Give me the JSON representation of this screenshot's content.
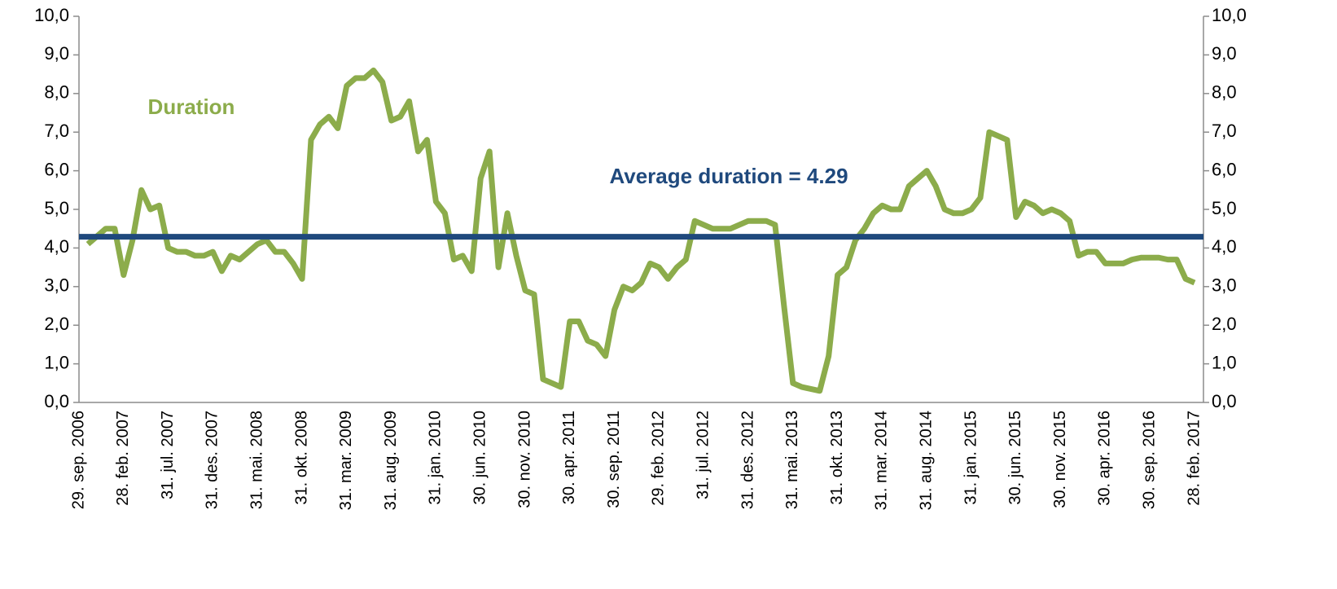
{
  "chart_data": {
    "type": "line",
    "categories": [
      "29. sep. 2006",
      null,
      null,
      null,
      null,
      "28. feb. 2007",
      null,
      null,
      null,
      null,
      "31. jul. 2007",
      null,
      null,
      null,
      null,
      "31. des. 2007",
      null,
      null,
      null,
      null,
      "31. mai. 2008",
      null,
      null,
      null,
      null,
      "31. okt. 2008",
      null,
      null,
      null,
      null,
      "31. mar. 2009",
      null,
      null,
      null,
      null,
      "31. aug. 2009",
      null,
      null,
      null,
      null,
      "31. jan. 2010",
      null,
      null,
      null,
      null,
      "30. jun. 2010",
      null,
      null,
      null,
      null,
      "30. nov. 2010",
      null,
      null,
      null,
      null,
      "30. apr. 2011",
      null,
      null,
      null,
      null,
      "30. sep. 2011",
      null,
      null,
      null,
      null,
      "29. feb. 2012",
      null,
      null,
      null,
      null,
      "31. jul. 2012",
      null,
      null,
      null,
      null,
      "31. des. 2012",
      null,
      null,
      null,
      null,
      "31. mai. 2013",
      null,
      null,
      null,
      null,
      "31. okt. 2013",
      null,
      null,
      null,
      null,
      "31. mar. 2014",
      null,
      null,
      null,
      null,
      "31. aug. 2014",
      null,
      null,
      null,
      null,
      "31. jan. 2015",
      null,
      null,
      null,
      null,
      "30. jun. 2015",
      null,
      null,
      null,
      null,
      "30. nov. 2015",
      null,
      null,
      null,
      null,
      "30. apr. 2016",
      null,
      null,
      null,
      null,
      "30. sep. 2016",
      null,
      null,
      null,
      null,
      "28. feb. 2017",
      null
    ],
    "series": [
      {
        "name": "Duration",
        "color": "#8cac4b",
        "values": [
          null,
          4.1,
          4.3,
          4.5,
          4.5,
          3.3,
          4.2,
          5.5,
          5.0,
          5.1,
          4.0,
          3.9,
          3.9,
          3.8,
          3.8,
          3.9,
          3.4,
          3.8,
          3.7,
          3.9,
          4.1,
          4.2,
          3.9,
          3.9,
          3.6,
          3.2,
          6.8,
          7.2,
          7.4,
          7.1,
          8.2,
          8.4,
          8.4,
          8.6,
          8.3,
          7.3,
          7.4,
          7.8,
          6.5,
          6.8,
          5.2,
          4.9,
          3.7,
          3.8,
          3.4,
          5.8,
          6.5,
          3.5,
          4.9,
          3.8,
          2.9,
          2.8,
          0.6,
          0.5,
          0.4,
          2.1,
          2.1,
          1.6,
          1.5,
          1.2,
          2.4,
          3.0,
          2.9,
          3.1,
          3.6,
          3.5,
          3.2,
          3.5,
          3.7,
          4.7,
          4.6,
          4.5,
          4.5,
          4.5,
          4.6,
          4.7,
          4.7,
          4.7,
          4.6,
          2.5,
          0.5,
          0.4,
          0.35,
          0.3,
          1.2,
          3.3,
          3.5,
          4.2,
          4.5,
          4.9,
          5.1,
          5.0,
          5.0,
          5.6,
          5.8,
          6.0,
          5.6,
          5.0,
          4.9,
          4.9,
          5.0,
          5.3,
          7.0,
          6.9,
          6.8,
          4.8,
          5.2,
          5.1,
          4.9,
          5.0,
          4.9,
          4.7,
          3.8,
          3.9,
          3.9,
          3.6,
          3.6,
          3.6,
          3.7,
          3.75,
          3.75,
          3.75,
          3.7,
          3.7,
          3.2,
          3.1,
          null
        ]
      }
    ],
    "average": {
      "value": 4.29,
      "label": "Average duration = 4.29",
      "color": "#1f497d"
    },
    "ylim": [
      0,
      10
    ],
    "yticks": [
      {
        "value": 0,
        "label": "0,0"
      },
      {
        "value": 1,
        "label": "1,0"
      },
      {
        "value": 2,
        "label": "2,0"
      },
      {
        "value": 3,
        "label": "3,0"
      },
      {
        "value": 4,
        "label": "4,0"
      },
      {
        "value": 5,
        "label": "5,0"
      },
      {
        "value": 6,
        "label": "6,0"
      },
      {
        "value": 7,
        "label": "7,0"
      },
      {
        "value": 8,
        "label": "8,0"
      },
      {
        "value": 9,
        "label": "9,0"
      },
      {
        "value": 10,
        "label": "10,0"
      }
    ],
    "y2lim": [
      0,
      10
    ],
    "y2ticks": [
      {
        "value": 0,
        "label": "0,0"
      },
      {
        "value": 1,
        "label": "1,0"
      },
      {
        "value": 2,
        "label": "2,0"
      },
      {
        "value": 3,
        "label": "3,0"
      },
      {
        "value": 4,
        "label": "4,0"
      },
      {
        "value": 5,
        "label": "5,0"
      },
      {
        "value": 6,
        "label": "6,0"
      },
      {
        "value": 7,
        "label": "7,0"
      },
      {
        "value": 8,
        "label": "8,0"
      },
      {
        "value": 9,
        "label": "9,0"
      },
      {
        "value": 10,
        "label": "10,0"
      }
    ],
    "grid": false
  }
}
